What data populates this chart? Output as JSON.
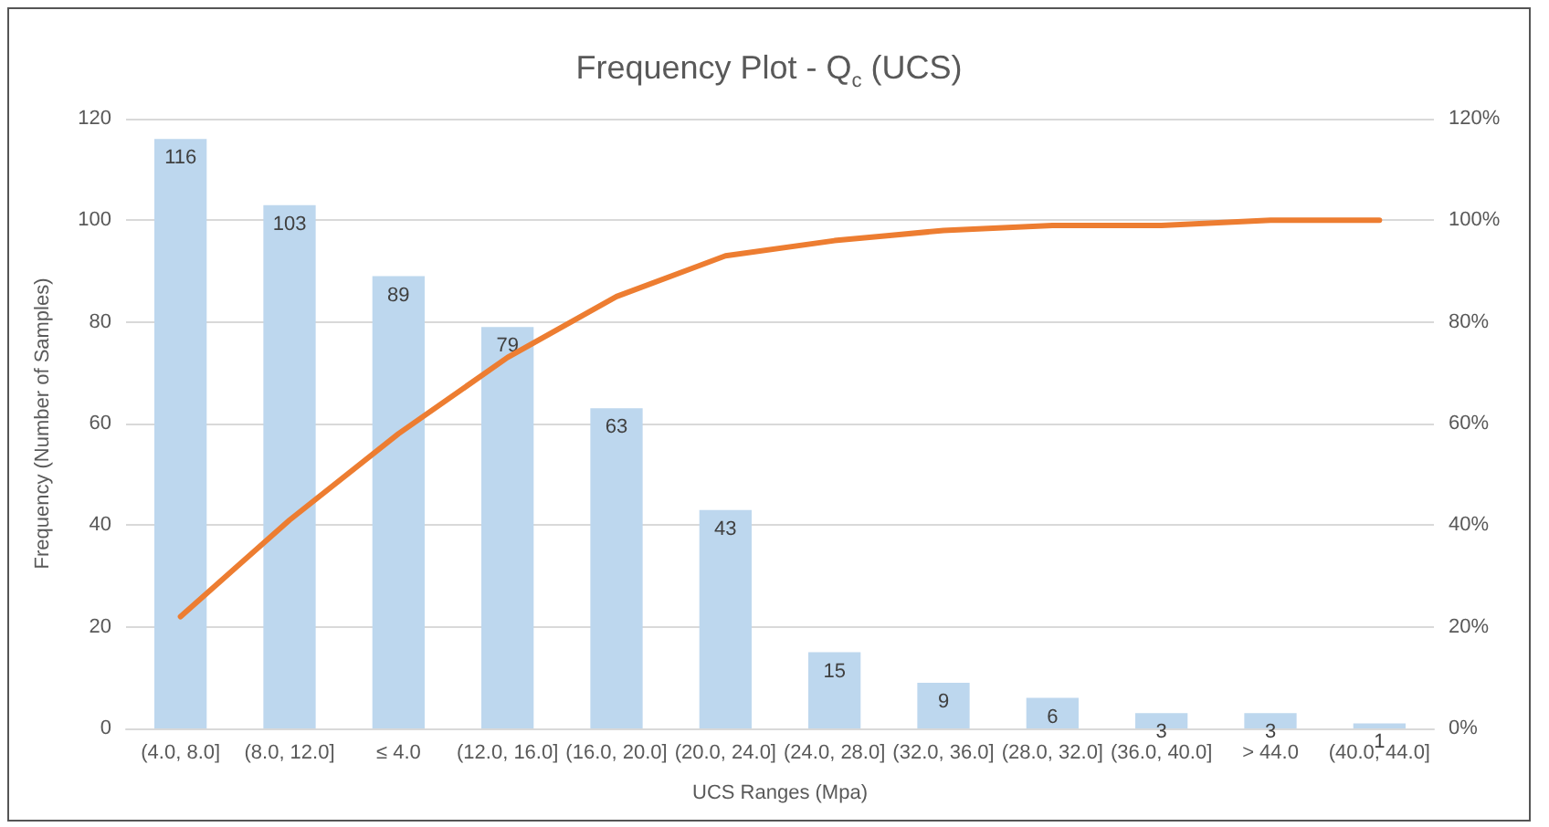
{
  "chart_data": {
    "type": "bar",
    "title": "Frequency Plot - Q$_{c}$ (UCS)",
    "xlabel": "UCS Ranges (Mpa)",
    "ylabel": "Frequency (Number of Samples)",
    "categories": [
      "(4.0, 8.0]",
      "(8.0, 12.0]",
      "≤ 4.0",
      "(12.0, 16.0]",
      "(16.0, 20.0]",
      "(20.0, 24.0]",
      "(24.0, 28.0]",
      "(32.0, 36.0]",
      "(28.0, 32.0]",
      "(36.0, 40.0]",
      "> 44.0",
      "(40.0, 44.0]"
    ],
    "series": [
      {
        "color": "#bdd7ee",
        "values": [
          116,
          103,
          89,
          79,
          63,
          43,
          15,
          9,
          6,
          3,
          3,
          1
        ],
        "value_labels": [
          "116",
          "103",
          "89",
          "79",
          "63",
          "43",
          "15",
          "9",
          "6",
          "3",
          "3",
          "1"
        ]
      },
      {
        "type": "line",
        "axis": "y2",
        "color": "#ed7d31",
        "values": [
          22,
          41,
          58,
          73,
          85,
          93,
          96,
          98,
          99,
          99,
          100,
          100
        ]
      }
    ],
    "ylim": [
      0,
      120
    ],
    "yticks": [
      0,
      20,
      40,
      60,
      80,
      100,
      120
    ],
    "y2lim": [
      0,
      120
    ],
    "y2ticks": [
      {
        "value": 0,
        "label": "0%"
      },
      {
        "value": 20,
        "label": "20%"
      },
      {
        "value": 40,
        "label": "40%"
      },
      {
        "value": 60,
        "label": "60%"
      },
      {
        "value": 80,
        "label": "80%"
      },
      {
        "value": 100,
        "label": "100%"
      },
      {
        "value": 120,
        "label": "120%"
      }
    ],
    "grid": "y",
    "marker": "none",
    "line_style": "solid"
  }
}
